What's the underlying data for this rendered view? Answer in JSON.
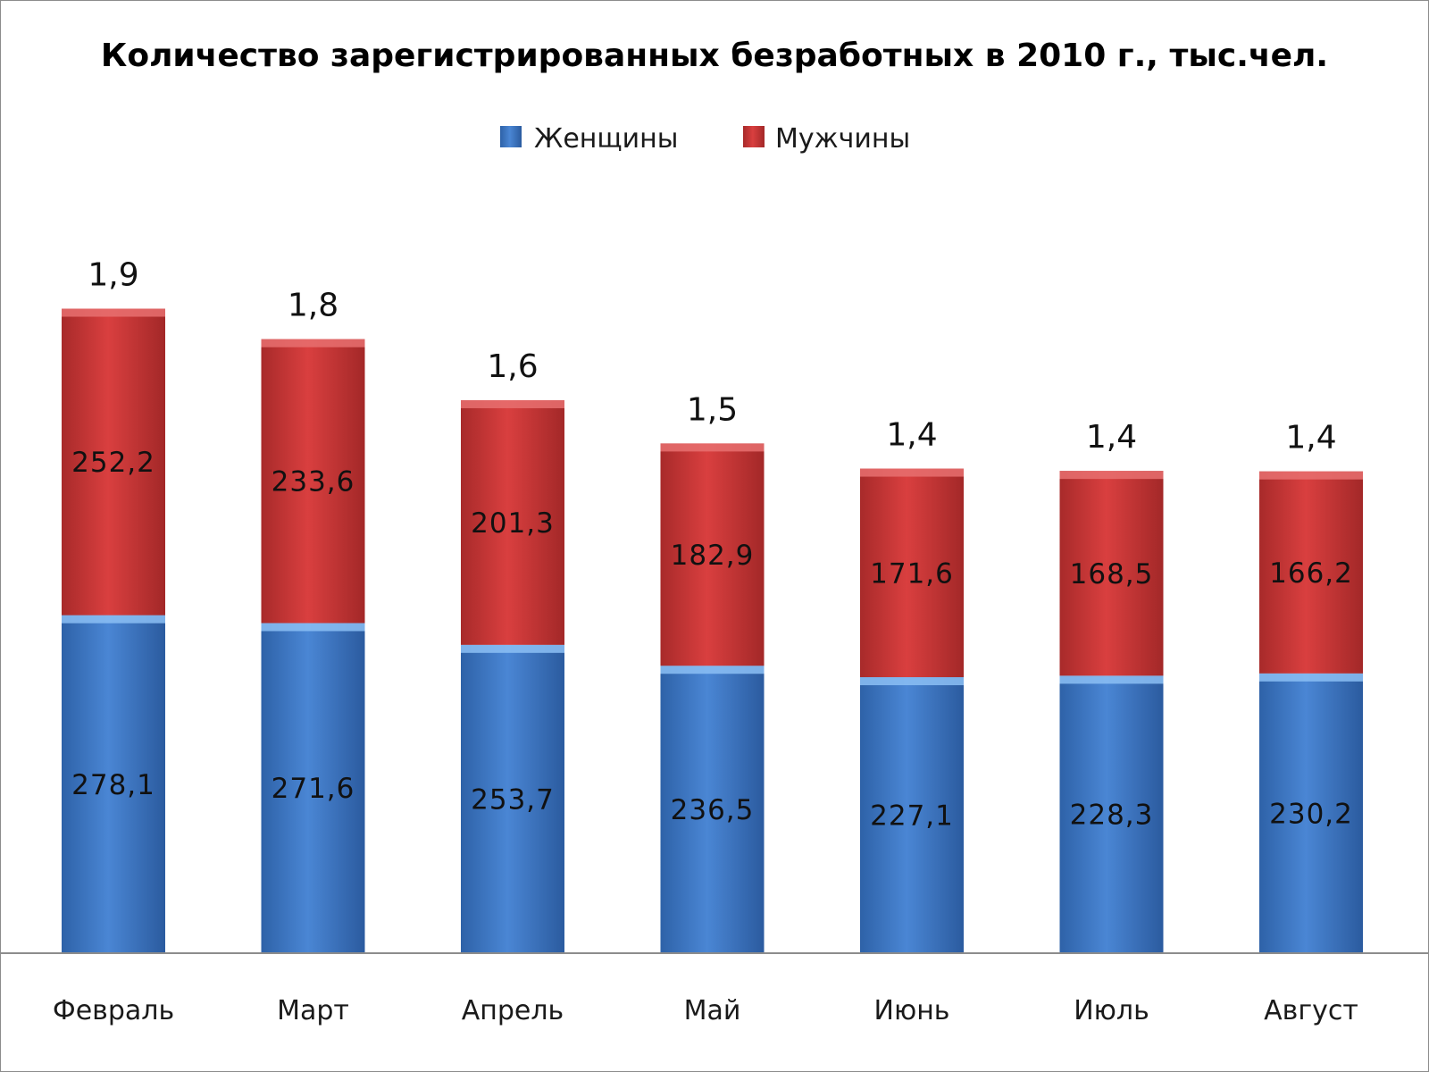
{
  "chart_data": {
    "type": "bar",
    "stacked": true,
    "title": "Количество зарегистрированных безработных в 2010 г., тыс.чел.",
    "categories": [
      "Февраль",
      "Март",
      "Апрель",
      "Май",
      "Июнь",
      "Июль",
      "Август"
    ],
    "series": [
      {
        "name": "Женщины",
        "color": "#4a86d4",
        "values": [
          278.1,
          271.6,
          253.7,
          236.5,
          227.1,
          228.3,
          230.2
        ],
        "labels": [
          "278,1",
          "271,6",
          "253,7",
          "236,5",
          "227,1",
          "228,3",
          "230,2"
        ]
      },
      {
        "name": "Мужчины",
        "color": "#d03b3b",
        "values": [
          252.2,
          233.6,
          201.3,
          182.9,
          171.6,
          168.5,
          166.2
        ],
        "labels": [
          "252,2",
          "233,6",
          "201,3",
          "182,9",
          "171,6",
          "168,5",
          "166,2"
        ]
      }
    ],
    "top_labels": [
      "1,9",
      "1,8",
      "1,6",
      "1,5",
      "1,4",
      "1,4",
      "1,4"
    ],
    "legend_position": "top-center",
    "grid": false,
    "xlabel": "",
    "ylabel": ""
  }
}
